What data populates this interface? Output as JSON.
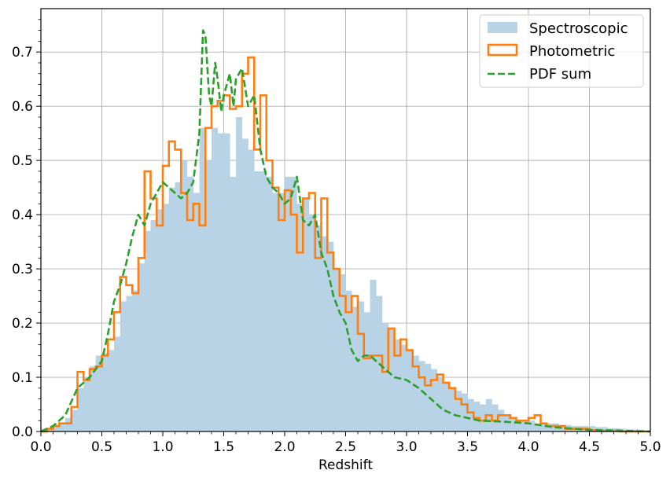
{
  "chart_data": {
    "type": "histogram",
    "xlabel": "Redshift",
    "ylabel": "",
    "xlim": [
      0.0,
      5.0
    ],
    "ylim": [
      0.0,
      0.78
    ],
    "grid": true,
    "legend_position": "top-right",
    "x_ticks": [
      "0.0",
      "0.5",
      "1.0",
      "1.5",
      "2.0",
      "2.5",
      "3.0",
      "3.5",
      "4.0",
      "4.5",
      "5.0"
    ],
    "y_ticks": [
      "0.0",
      "0.1",
      "0.2",
      "0.3",
      "0.4",
      "0.5",
      "0.6",
      "0.7"
    ],
    "series": [
      {
        "name": "Spectroscopic",
        "kind": "filled-histogram",
        "color": "#b9d3e6",
        "bin_start": 0.0,
        "bin_width": 0.05,
        "values": [
          0.002,
          0.005,
          0.012,
          0.015,
          0.025,
          0.04,
          0.08,
          0.1,
          0.12,
          0.14,
          0.145,
          0.15,
          0.175,
          0.24,
          0.25,
          0.26,
          0.31,
          0.37,
          0.39,
          0.41,
          0.42,
          0.45,
          0.46,
          0.5,
          0.47,
          0.44,
          0.56,
          0.5,
          0.56,
          0.55,
          0.55,
          0.47,
          0.58,
          0.54,
          0.52,
          0.48,
          0.48,
          0.47,
          0.44,
          0.44,
          0.47,
          0.47,
          0.42,
          0.43,
          0.4,
          0.38,
          0.36,
          0.35,
          0.3,
          0.29,
          0.26,
          0.23,
          0.24,
          0.22,
          0.28,
          0.25,
          0.2,
          0.19,
          0.17,
          0.16,
          0.15,
          0.14,
          0.13,
          0.125,
          0.115,
          0.1,
          0.09,
          0.08,
          0.075,
          0.07,
          0.06,
          0.055,
          0.05,
          0.06,
          0.05,
          0.04,
          0.03,
          0.025,
          0.02,
          0.02,
          0.02,
          0.015,
          0.015,
          0.015,
          0.015,
          0.012,
          0.012,
          0.01,
          0.01,
          0.01,
          0.01,
          0.008,
          0.008,
          0.006,
          0.006,
          0.005,
          0.004,
          0.004,
          0.003,
          0.002
        ]
      },
      {
        "name": "Photometric",
        "kind": "step-histogram",
        "color": "#ff7f0e",
        "bin_start": 0.0,
        "bin_width": 0.05,
        "values": [
          0.0,
          0.005,
          0.01,
          0.015,
          0.015,
          0.045,
          0.11,
          0.095,
          0.115,
          0.12,
          0.14,
          0.17,
          0.22,
          0.285,
          0.27,
          0.255,
          0.32,
          0.48,
          0.43,
          0.38,
          0.49,
          0.535,
          0.52,
          0.44,
          0.39,
          0.42,
          0.38,
          0.56,
          0.6,
          0.61,
          0.62,
          0.595,
          0.6,
          0.66,
          0.69,
          0.52,
          0.62,
          0.5,
          0.45,
          0.39,
          0.445,
          0.4,
          0.33,
          0.43,
          0.44,
          0.32,
          0.43,
          0.33,
          0.3,
          0.25,
          0.22,
          0.25,
          0.18,
          0.135,
          0.14,
          0.14,
          0.11,
          0.19,
          0.14,
          0.17,
          0.15,
          0.12,
          0.1,
          0.085,
          0.095,
          0.105,
          0.09,
          0.08,
          0.06,
          0.05,
          0.035,
          0.025,
          0.02,
          0.03,
          0.02,
          0.03,
          0.03,
          0.025,
          0.02,
          0.02,
          0.025,
          0.03,
          0.015,
          0.01,
          0.01,
          0.01,
          0.005,
          0.005,
          0.005,
          0.005,
          0.002,
          0.002,
          0.001,
          0.001,
          0.001,
          0.0,
          0.0,
          0.0,
          0.0,
          0.0
        ]
      },
      {
        "name": "PDF sum",
        "kind": "dashed-line",
        "color": "#2ca02c",
        "x": [
          0.0,
          0.1,
          0.2,
          0.3,
          0.4,
          0.5,
          0.55,
          0.6,
          0.65,
          0.7,
          0.75,
          0.8,
          0.85,
          0.9,
          0.95,
          1.0,
          1.05,
          1.1,
          1.15,
          1.2,
          1.25,
          1.3,
          1.33,
          1.35,
          1.38,
          1.4,
          1.43,
          1.45,
          1.48,
          1.5,
          1.55,
          1.58,
          1.6,
          1.65,
          1.7,
          1.75,
          1.8,
          1.85,
          1.9,
          1.95,
          2.0,
          2.05,
          2.1,
          2.15,
          2.2,
          2.25,
          2.3,
          2.35,
          2.4,
          2.45,
          2.5,
          2.55,
          2.6,
          2.65,
          2.7,
          2.8,
          2.9,
          3.0,
          3.1,
          3.2,
          3.3,
          3.4,
          3.5,
          3.6,
          3.8,
          4.0,
          4.2,
          4.5,
          5.0
        ],
        "y": [
          0.0,
          0.01,
          0.03,
          0.08,
          0.1,
          0.13,
          0.18,
          0.24,
          0.27,
          0.31,
          0.36,
          0.4,
          0.38,
          0.42,
          0.44,
          0.46,
          0.45,
          0.44,
          0.43,
          0.44,
          0.46,
          0.55,
          0.74,
          0.73,
          0.62,
          0.6,
          0.68,
          0.65,
          0.59,
          0.62,
          0.66,
          0.6,
          0.65,
          0.67,
          0.6,
          0.62,
          0.52,
          0.47,
          0.45,
          0.44,
          0.42,
          0.43,
          0.47,
          0.39,
          0.38,
          0.4,
          0.33,
          0.3,
          0.25,
          0.22,
          0.2,
          0.15,
          0.13,
          0.14,
          0.14,
          0.12,
          0.1,
          0.095,
          0.08,
          0.06,
          0.04,
          0.03,
          0.025,
          0.02,
          0.018,
          0.015,
          0.008,
          0.003,
          0.0
        ]
      }
    ]
  }
}
